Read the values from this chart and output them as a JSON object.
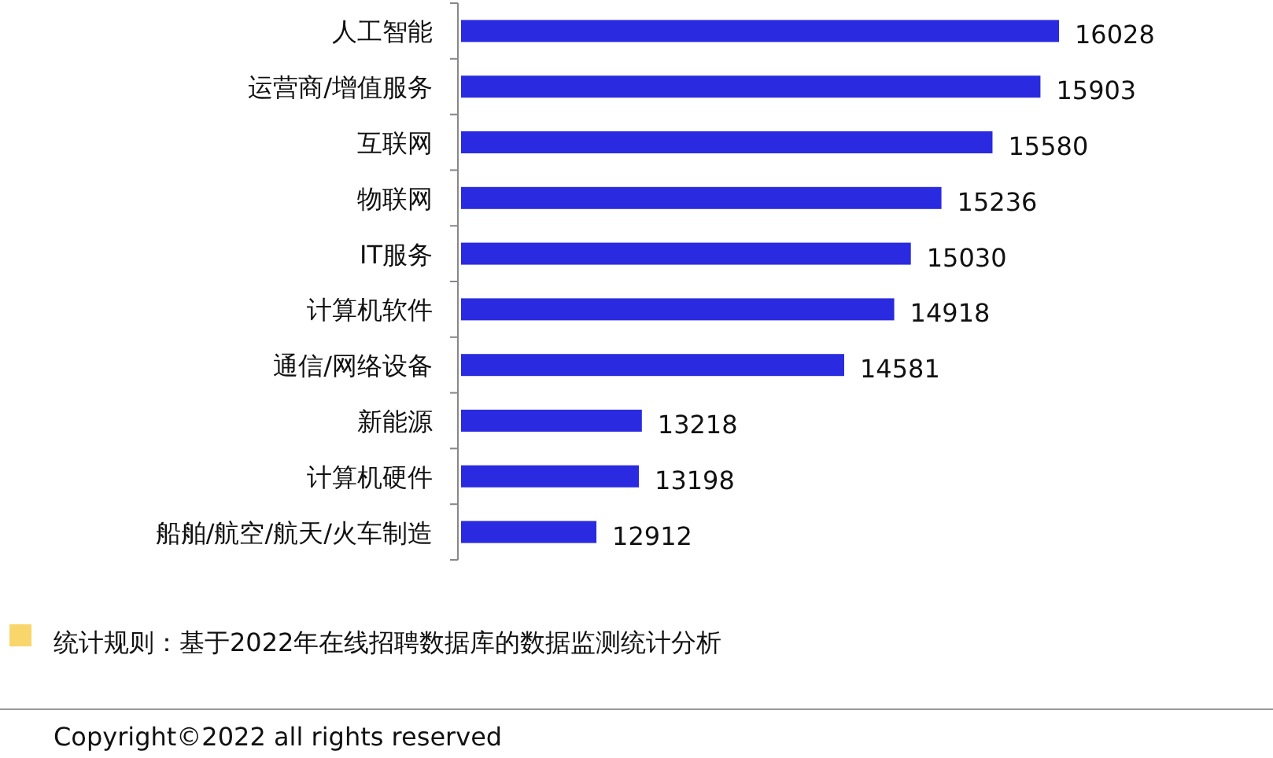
{
  "chart_data": {
    "type": "bar",
    "orientation": "horizontal",
    "categories": [
      "人工智能",
      "运营商/增值服务",
      "互联网",
      "物联网",
      "IT服务",
      "计算机软件",
      "通信/网络设备",
      "新能源",
      "计算机硬件",
      "船舶/航空/航天/火车制造"
    ],
    "values": [
      16028,
      15903,
      15580,
      15236,
      15030,
      14918,
      14581,
      13218,
      13198,
      12912
    ],
    "color": "#2a2ae0",
    "xlim": [
      12000,
      16028
    ],
    "data_labels": true,
    "annotations": [
      "统计规则：基于2022年在线招聘数据库的数据监测统计分析",
      "Copyright©2022 all rights reserved"
    ]
  }
}
